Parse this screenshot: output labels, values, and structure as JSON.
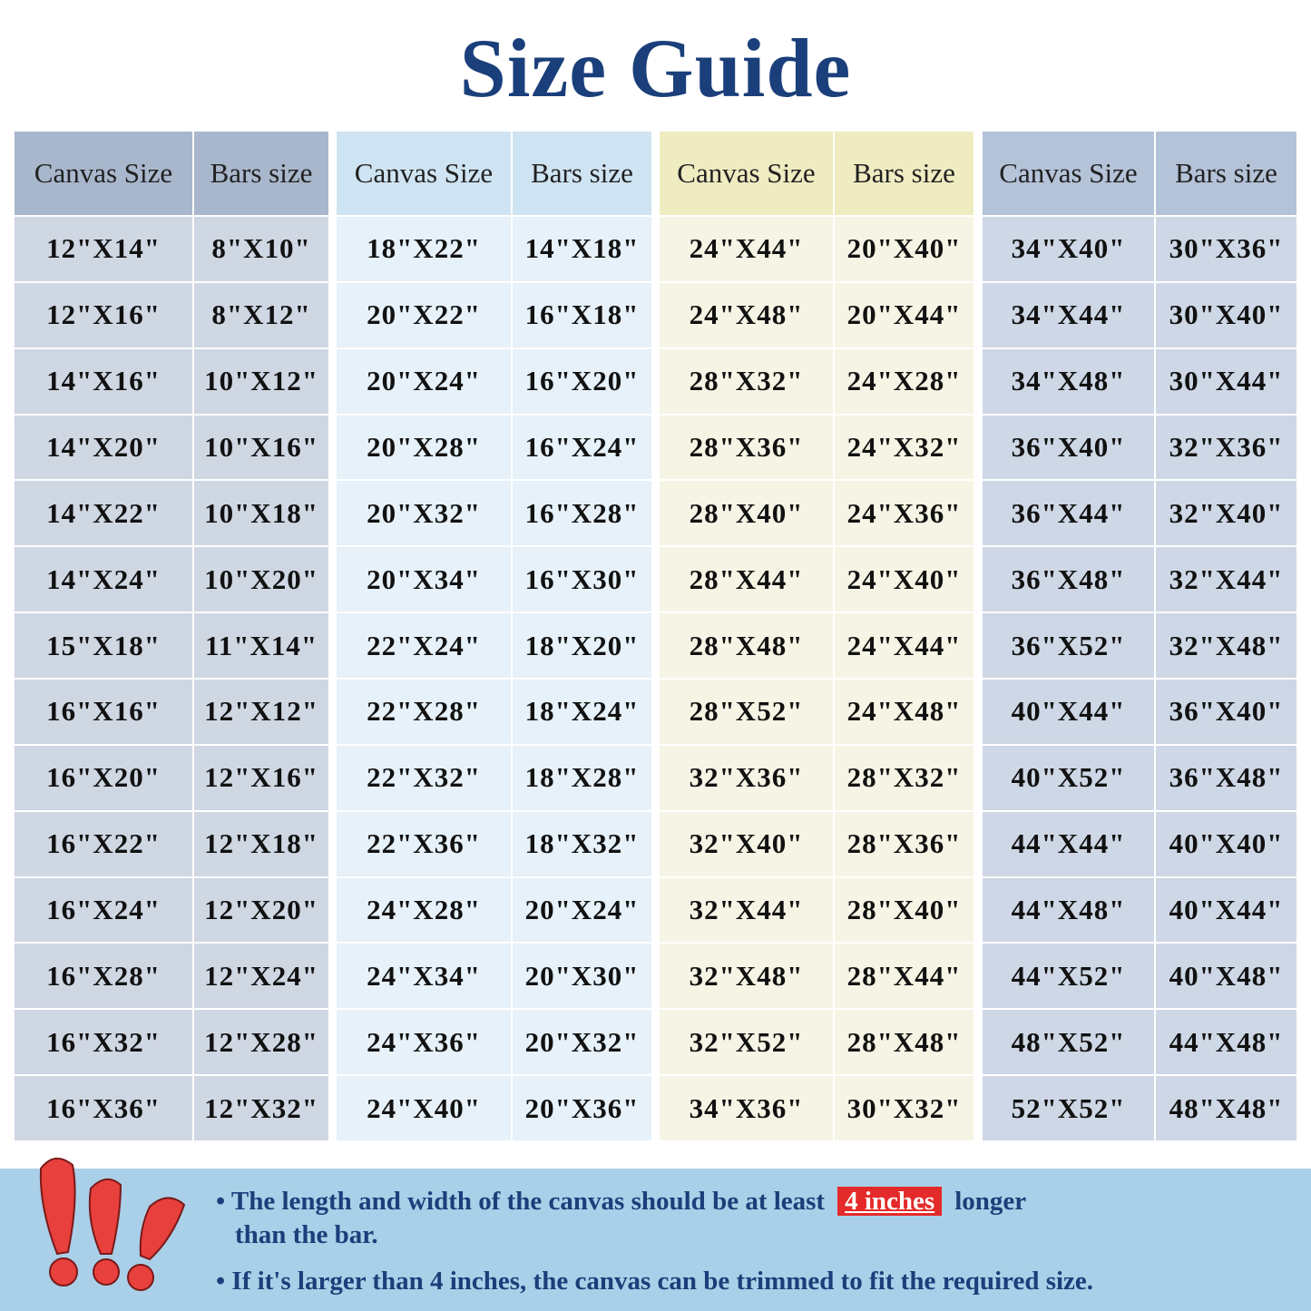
{
  "title": "Size Guide",
  "headers": {
    "canvas": "Canvas Size",
    "bars": "Bars size"
  },
  "colors": {
    "title": "#1a3f7a",
    "note_bg": "#a9d0e8",
    "highlight": "#e42a2a"
  },
  "groups": [
    {
      "header_color": "#a9b7cc",
      "body_color": "#cfd7e3",
      "rows": [
        [
          "12\"X14\"",
          "8\"X10\""
        ],
        [
          "12\"X16\"",
          "8\"X12\""
        ],
        [
          "14\"X16\"",
          "10\"X12\""
        ],
        [
          "14\"X20\"",
          "10\"X16\""
        ],
        [
          "14\"X22\"",
          "10\"X18\""
        ],
        [
          "14\"X24\"",
          "10\"X20\""
        ],
        [
          "15\"X18\"",
          "11\"X14\""
        ],
        [
          "16\"X16\"",
          "12\"X12\""
        ],
        [
          "16\"X20\"",
          "12\"X16\""
        ],
        [
          "16\"X22\"",
          "12\"X18\""
        ],
        [
          "16\"X24\"",
          "12\"X20\""
        ],
        [
          "16\"X28\"",
          "12\"X24\""
        ],
        [
          "16\"X32\"",
          "12\"X28\""
        ],
        [
          "16\"X36\"",
          "12\"X32\""
        ]
      ]
    },
    {
      "header_color": "#cfe4f2",
      "body_color": "#e6f1f9",
      "rows": [
        [
          "18\"X22\"",
          "14\"X18\""
        ],
        [
          "20\"X22\"",
          "16\"X18\""
        ],
        [
          "20\"X24\"",
          "16\"X20\""
        ],
        [
          "20\"X28\"",
          "16\"X24\""
        ],
        [
          "20\"X32\"",
          "16\"X28\""
        ],
        [
          "20\"X34\"",
          "16\"X30\""
        ],
        [
          "22\"X24\"",
          "18\"X20\""
        ],
        [
          "22\"X28\"",
          "18\"X24\""
        ],
        [
          "22\"X32\"",
          "18\"X28\""
        ],
        [
          "22\"X36\"",
          "18\"X32\""
        ],
        [
          "24\"X28\"",
          "20\"X24\""
        ],
        [
          "24\"X34\"",
          "20\"X30\""
        ],
        [
          "24\"X36\"",
          "20\"X32\""
        ],
        [
          "24\"X40\"",
          "20\"X36\""
        ]
      ]
    },
    {
      "header_color": "#efecc2",
      "body_color": "#f6f4e4",
      "rows": [
        [
          "24\"X44\"",
          "20\"X40\""
        ],
        [
          "24\"X48\"",
          "20\"X44\""
        ],
        [
          "28\"X32\"",
          "24\"X28\""
        ],
        [
          "28\"X36\"",
          "24\"X32\""
        ],
        [
          "28\"X40\"",
          "24\"X36\""
        ],
        [
          "28\"X44\"",
          "24\"X40\""
        ],
        [
          "28\"X48\"",
          "24\"X44\""
        ],
        [
          "28\"X52\"",
          "24\"X48\""
        ],
        [
          "32\"X36\"",
          "28\"X32\""
        ],
        [
          "32\"X40\"",
          "28\"X36\""
        ],
        [
          "32\"X44\"",
          "28\"X40\""
        ],
        [
          "32\"X48\"",
          "28\"X44\""
        ],
        [
          "32\"X52\"",
          "28\"X48\""
        ],
        [
          "34\"X36\"",
          "30\"X32\""
        ]
      ]
    },
    {
      "header_color": "#b4c3d8",
      "body_color": "#cdd7e5",
      "rows": [
        [
          "34\"X40\"",
          "30\"X36\""
        ],
        [
          "34\"X44\"",
          "30\"X40\""
        ],
        [
          "34\"X48\"",
          "30\"X44\""
        ],
        [
          "36\"X40\"",
          "32\"X36\""
        ],
        [
          "36\"X44\"",
          "32\"X40\""
        ],
        [
          "36\"X48\"",
          "32\"X44\""
        ],
        [
          "36\"X52\"",
          "32\"X48\""
        ],
        [
          "40\"X44\"",
          "36\"X40\""
        ],
        [
          "40\"X52\"",
          "36\"X48\""
        ],
        [
          "44\"X44\"",
          "40\"X40\""
        ],
        [
          "44\"X48\"",
          "40\"X44\""
        ],
        [
          "44\"X52\"",
          "40\"X48\""
        ],
        [
          "48\"X52\"",
          "44\"X48\""
        ],
        [
          "52\"X52\"",
          "48\"X48\""
        ]
      ]
    }
  ],
  "notes": {
    "line1_before": "• The length and width of the canvas should be at least",
    "line1_highlight": "4 inches",
    "line1_after": "longer",
    "line1_cont": "than the bar.",
    "line2": "• If it's larger than 4 inches, the canvas can be trimmed to fit the required size.",
    "icon": "exclamation-marks-icon"
  }
}
